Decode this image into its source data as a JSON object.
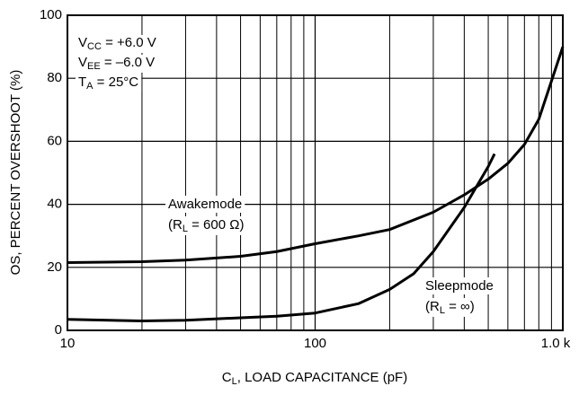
{
  "chart_data": {
    "type": "line",
    "xlog": true,
    "xlim": [
      10,
      1000
    ],
    "ylim": [
      0,
      100
    ],
    "xticks": [
      10,
      100,
      {
        "value": 1000,
        "label": "1.0 k"
      }
    ],
    "xminor": [
      20,
      30,
      40,
      50,
      60,
      70,
      80,
      90,
      200,
      300,
      400,
      500,
      600,
      700,
      800,
      900
    ],
    "yticks": [
      0,
      20,
      40,
      60,
      80,
      100
    ],
    "grid": true,
    "y_label": "OS, PERCENT OVERSHOOT (%)",
    "x_label": {
      "main": "C",
      "sub": "L",
      "rest": ", LOAD CAPACITANCE (pF)"
    },
    "conditions": [
      {
        "main": "V",
        "sub": "CC",
        "rest": " = +6.0 V"
      },
      {
        "main": "V",
        "sub": "EE",
        "rest": " = –6.0 V"
      },
      {
        "main": "T",
        "sub": "A",
        "rest": " = 25°C"
      }
    ],
    "series": [
      {
        "name": "Awakemode",
        "color": "#000000",
        "note": {
          "main": "(R",
          "sub": "L",
          "rest": " = 600 Ω)"
        },
        "x": [
          10,
          20,
          30,
          50,
          70,
          100,
          150,
          200,
          300,
          400,
          500,
          600,
          700,
          800,
          1000
        ],
        "values": [
          21.5,
          21.8,
          22.3,
          23.5,
          25,
          27.5,
          30,
          32,
          37.5,
          43,
          48,
          53,
          59,
          67,
          90
        ]
      },
      {
        "name": "Sleepmode",
        "color": "#000000",
        "note": {
          "main": "(R",
          "sub": "L",
          "rest": " = ∞)"
        },
        "x": [
          10,
          20,
          30,
          50,
          70,
          100,
          150,
          200,
          250,
          300,
          400,
          500,
          530
        ],
        "values": [
          3.5,
          3,
          3.2,
          4,
          4.5,
          5.5,
          8.5,
          13,
          18,
          25,
          39,
          52,
          56
        ]
      }
    ]
  }
}
